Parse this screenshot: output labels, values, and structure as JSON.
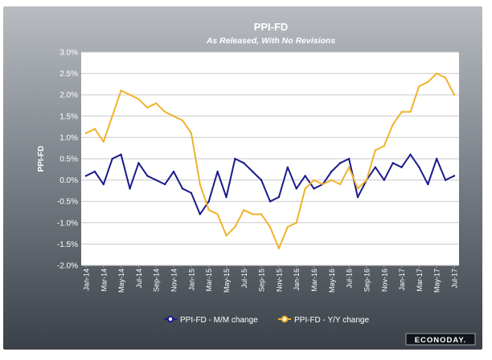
{
  "chart_data": {
    "type": "line",
    "title": "PPI-FD",
    "subtitle": "As Released, With No Revisions",
    "ylabel": "PPI-FD",
    "xlabel": "",
    "ylim": [
      -2.0,
      3.0
    ],
    "y_ticks": [
      "3.0%",
      "2.5%",
      "2.0%",
      "1.5%",
      "1.0%",
      "0.5%",
      "0.0%",
      "-0.5%",
      "-1.0%",
      "-1.5%",
      "-2.0%"
    ],
    "y_tick_values": [
      3.0,
      2.5,
      2.0,
      1.5,
      1.0,
      0.5,
      0.0,
      -0.5,
      -1.0,
      -1.5,
      -2.0
    ],
    "x_tick_labels": [
      "Jan-14",
      "Mar-14",
      "May-14",
      "Jul-14",
      "Sep-14",
      "Nov-14",
      "Jan-15",
      "Mar-15",
      "May-15",
      "Jul-15",
      "Sep-15",
      "Nov-15",
      "Jan-16",
      "Mar-16",
      "May-16",
      "Jul-16",
      "Sep-16",
      "Nov-16",
      "Jan-17",
      "Mar-17",
      "May-17",
      "Jul-17"
    ],
    "categories": [
      "Jan-14",
      "Feb-14",
      "Mar-14",
      "Apr-14",
      "May-14",
      "Jun-14",
      "Jul-14",
      "Aug-14",
      "Sep-14",
      "Oct-14",
      "Nov-14",
      "Dec-14",
      "Jan-15",
      "Feb-15",
      "Mar-15",
      "Apr-15",
      "May-15",
      "Jun-15",
      "Jul-15",
      "Aug-15",
      "Sep-15",
      "Oct-15",
      "Nov-15",
      "Dec-15",
      "Jan-16",
      "Feb-16",
      "Mar-16",
      "Apr-16",
      "May-16",
      "Jun-16",
      "Jul-16",
      "Aug-16",
      "Sep-16",
      "Oct-16",
      "Nov-16",
      "Dec-16",
      "Jan-17",
      "Feb-17",
      "Mar-17",
      "Apr-17",
      "May-17",
      "Jun-17",
      "Jul-17"
    ],
    "series": [
      {
        "name": "PPI-FD - M/M change",
        "color": "#1a1a8c",
        "values": [
          0.1,
          0.2,
          -0.1,
          0.5,
          0.6,
          -0.2,
          0.4,
          0.1,
          0.0,
          -0.1,
          0.2,
          -0.2,
          -0.3,
          -0.8,
          -0.5,
          0.2,
          -0.4,
          0.5,
          0.4,
          0.2,
          0.0,
          -0.5,
          -0.4,
          0.3,
          -0.2,
          0.1,
          -0.2,
          -0.1,
          0.2,
          0.4,
          0.5,
          -0.4,
          0.0,
          0.3,
          0.0,
          0.4,
          0.3,
          0.6,
          0.3,
          -0.1,
          0.5,
          0.0,
          0.1
        ]
      },
      {
        "name": "PPI-FD - Y/Y change",
        "color": "#f0b32c",
        "values": [
          1.1,
          1.2,
          0.9,
          1.5,
          2.1,
          2.0,
          1.9,
          1.7,
          1.8,
          1.6,
          1.5,
          1.4,
          1.1,
          -0.1,
          -0.7,
          -0.8,
          -1.3,
          -1.1,
          -0.7,
          -0.8,
          -0.8,
          -1.1,
          -1.6,
          -1.1,
          -1.0,
          -0.2,
          0.0,
          -0.1,
          0.0,
          -0.1,
          0.3,
          -0.2,
          0.0,
          0.7,
          0.8,
          1.3,
          1.6,
          1.6,
          2.2,
          2.3,
          2.5,
          2.4,
          2.0
        ]
      }
    ],
    "legend_position": "bottom-center",
    "grid": true
  },
  "legend": {
    "mm_label": "PPI-FD - M/M change",
    "yy_label": "PPI-FD - Y/Y change"
  },
  "branding": {
    "logo_text": "ECONODAY."
  },
  "colors": {
    "mm_line": "#1a1a8c",
    "yy_line": "#f0b32c",
    "plot_bg": "#ffffff",
    "frame_top": "#b4b8bd",
    "frame_bottom": "#3c4249"
  }
}
